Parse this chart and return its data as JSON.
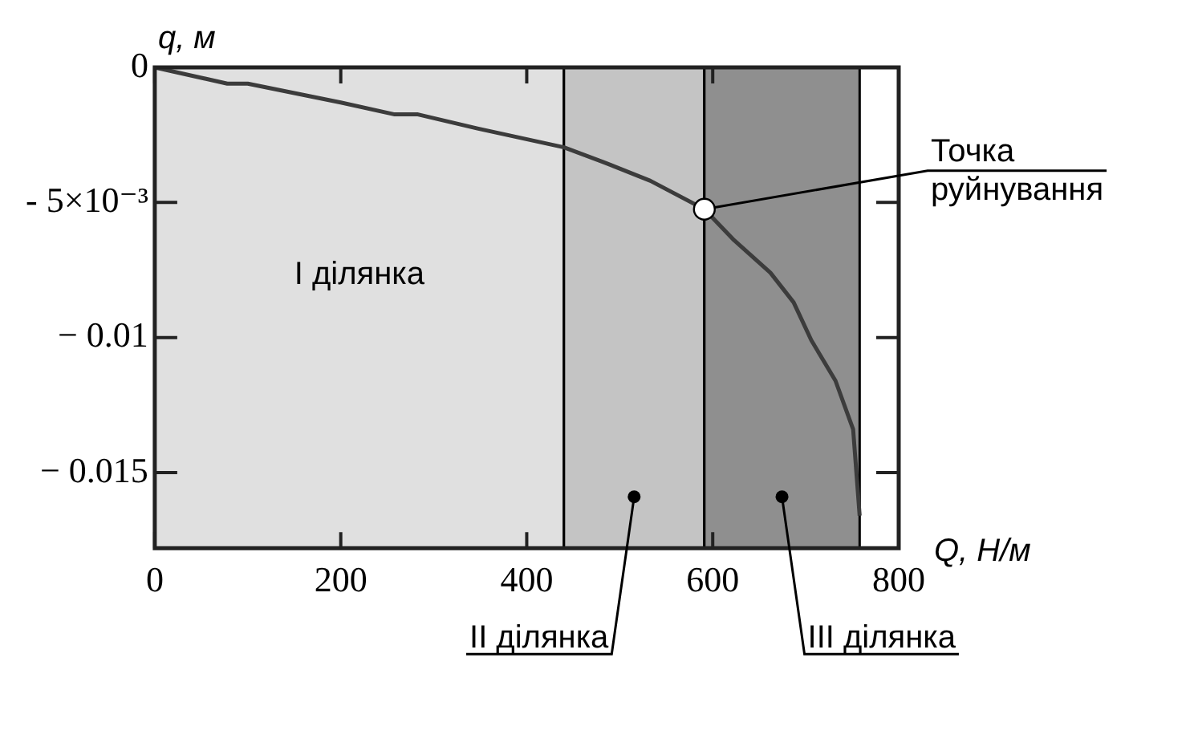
{
  "chart_data": {
    "type": "line",
    "xlabel": "Q, Н/м",
    "ylabel": "q, м",
    "x": [
      0,
      78,
      100,
      200,
      258,
      283,
      347,
      440,
      482,
      533,
      591,
      623,
      662,
      687,
      706,
      732,
      751,
      758
    ],
    "series": [
      {
        "color": "#3c3c3c",
        "values": [
          0,
          -0.0006,
          -0.0006,
          -0.0013,
          -0.00174,
          -0.00174,
          -0.00226,
          -0.00296,
          -0.0035,
          -0.0042,
          -0.00525,
          -0.0064,
          -0.0076,
          -0.0087,
          -0.0101,
          -0.0116,
          -0.0134,
          -0.0166
        ]
      }
    ],
    "xlim": [
      0,
      800
    ],
    "xticks": [
      0,
      200,
      400,
      600,
      800
    ],
    "ylim": [
      -0.0178,
      0
    ],
    "yticks": [
      0,
      {
        "value": -0.005,
        "label": "- 5×10⁻³"
      },
      {
        "value": -0.01,
        "label": "− 0.01"
      },
      {
        "value": -0.015,
        "label": "− 0.015"
      }
    ],
    "bands": [
      {
        "axis": "x",
        "from": 0,
        "to": 440,
        "label": "I ділянка",
        "color": "#e0e0e0"
      },
      {
        "axis": "x",
        "from": 440,
        "to": 591,
        "label": "II ділянка",
        "color": "#c4c4c4"
      },
      {
        "axis": "x",
        "from": 591,
        "to": 758,
        "label": "III ділянка",
        "color": "#8f8f8f"
      }
    ],
    "annotations": [
      {
        "text": "Точка руйнування",
        "x": 591,
        "y": -0.00525
      }
    ],
    "marker": "none",
    "legend": false,
    "grid": false
  }
}
